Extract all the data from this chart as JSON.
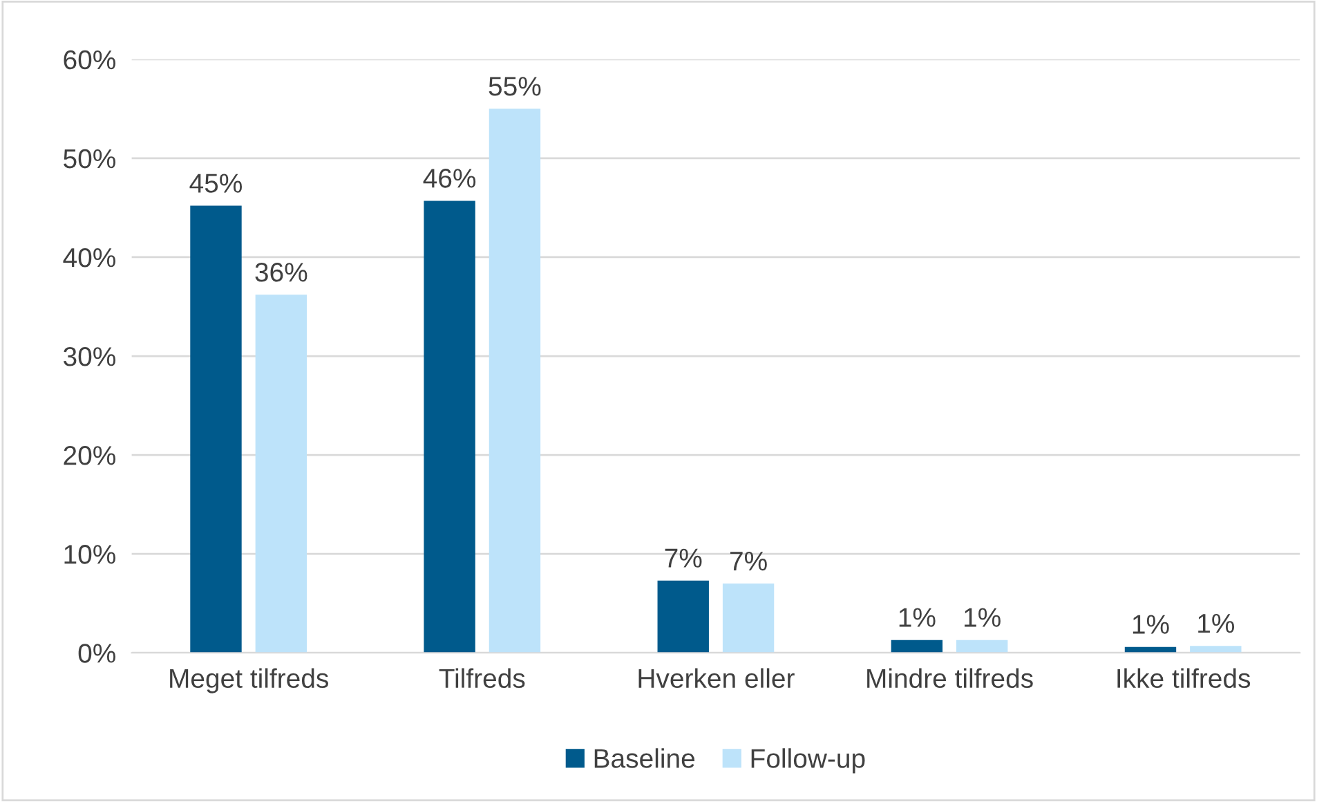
{
  "chart_data": {
    "type": "bar",
    "categories": [
      "Meget tilfreds",
      "Tilfreds",
      "Hverken eller",
      "Mindre tilfreds",
      "Ikke tilfreds"
    ],
    "series": [
      {
        "name": "Baseline",
        "color": "#005a8c",
        "values": [
          45.2,
          45.7,
          7.3,
          1.3,
          0.6
        ],
        "value_labels": [
          "45%",
          "46%",
          "7%",
          "1%",
          "1%"
        ]
      },
      {
        "name": "Follow-up",
        "color": "#bde3fa",
        "values": [
          36.2,
          55.0,
          7.0,
          1.3,
          0.7
        ],
        "value_labels": [
          "36%",
          "55%",
          "7%",
          "1%",
          "1%"
        ]
      }
    ],
    "ylim": [
      0,
      60
    ],
    "yticks": [
      {
        "value": 0,
        "label": "0%"
      },
      {
        "value": 10,
        "label": "10%"
      },
      {
        "value": 20,
        "label": "20%"
      },
      {
        "value": 30,
        "label": "30%"
      },
      {
        "value": 40,
        "label": "40%"
      },
      {
        "value": 50,
        "label": "50%"
      },
      {
        "value": 60,
        "label": "60%"
      }
    ],
    "grid": "y",
    "legend": "bottom"
  }
}
